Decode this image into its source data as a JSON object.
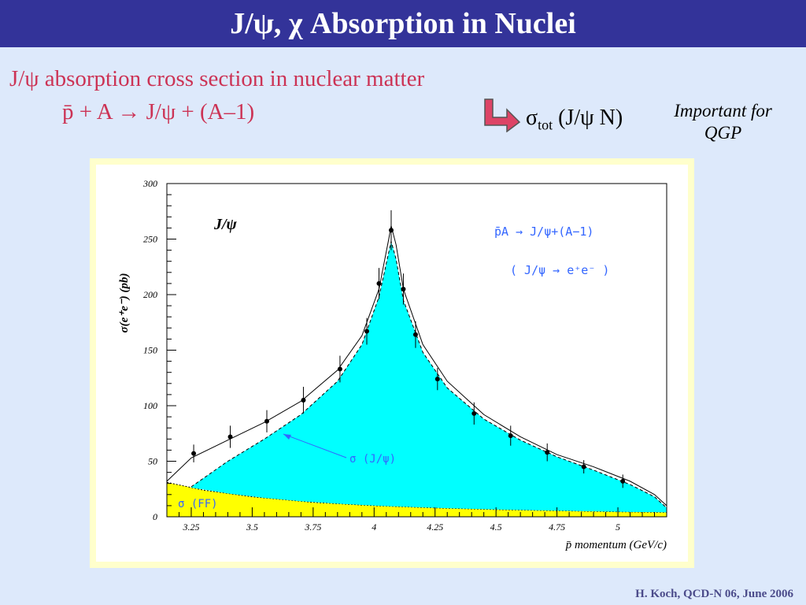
{
  "slide": {
    "title": "J/ψ, χ Absorption in Nuclei",
    "line1": "J/ψ  absorption cross section in nuclear matter",
    "line2": "p̄ + A → J/ψ + (A–1)",
    "sigma_symbol": "σ",
    "sigma_sub": "tot",
    "sigma_rest": " (J/ψ N)",
    "qgp_note_line1": "Important for",
    "qgp_note_line2": "QGP",
    "footer": "H. Koch, QCD-N 06, June 2006",
    "arrow_icon": "bent-arrow-icon",
    "colors": {
      "title_bg": "#333399",
      "accent_text": "#cc3355",
      "slide_bg": "#dde9fb",
      "frame": "#ffffcc",
      "arrow_fill": "#dd4466"
    }
  },
  "chart_data": {
    "type": "line",
    "xlabel": "p̄  momentum (GeV/c)",
    "ylabel": "σ(e⁺e⁻)  (pb)",
    "xlim": [
      3.15,
      5.2
    ],
    "ylim": [
      0,
      300
    ],
    "xticks": [
      3.25,
      3.5,
      3.75,
      4,
      4.25,
      4.5,
      4.75,
      5
    ],
    "xtick_labels": [
      "3.25",
      "3.5",
      "3.75",
      "4",
      "4.25",
      "4.5",
      "4.75",
      "5"
    ],
    "yticks": [
      0,
      50,
      100,
      150,
      200,
      250,
      300
    ],
    "ytick_labels": [
      "0",
      "50",
      "100",
      "150",
      "200",
      "250",
      "300"
    ],
    "grid": false,
    "annotations": {
      "particle": "J/ψ",
      "reaction": "p̄A → J/ψ+(A−1)",
      "decay": "( J/ψ → e⁺e⁻ )",
      "jpsi_label": "σ (J/ψ)",
      "ff_label": "σ (FF)"
    },
    "series": [
      {
        "kind": "data_points",
        "x": [
          3.26,
          3.41,
          3.56,
          3.71,
          3.86,
          3.97,
          4.02,
          4.07,
          4.12,
          4.17,
          4.26,
          4.41,
          4.56,
          4.71,
          4.86,
          5.02
        ],
        "y": [
          57,
          72,
          86,
          105,
          133,
          167,
          210,
          258,
          205,
          164,
          124,
          93,
          73,
          58,
          45,
          32
        ],
        "err": [
          8,
          10,
          10,
          12,
          12,
          12,
          14,
          18,
          14,
          12,
          10,
          10,
          9,
          8,
          6,
          6
        ]
      },
      {
        "kind": "total_curve",
        "x": [
          3.15,
          3.25,
          3.4,
          3.55,
          3.7,
          3.85,
          3.95,
          4.02,
          4.06,
          4.07,
          4.09,
          4.12,
          4.2,
          4.3,
          4.45,
          4.6,
          4.75,
          4.9,
          5.05,
          5.15,
          5.2
        ],
        "y": [
          32,
          53,
          69,
          85,
          104,
          132,
          163,
          205,
          250,
          262,
          245,
          205,
          155,
          122,
          92,
          72,
          56,
          45,
          32,
          20,
          10
        ]
      },
      {
        "kind": "jpsi_region",
        "x": [
          3.25,
          3.4,
          3.55,
          3.7,
          3.85,
          3.95,
          4.02,
          4.06,
          4.07,
          4.09,
          4.12,
          4.2,
          4.3,
          4.45,
          4.6,
          4.75,
          4.9,
          5.05,
          5.15,
          5.2
        ],
        "y": [
          27,
          50,
          70,
          92,
          122,
          155,
          198,
          238,
          248,
          232,
          195,
          148,
          116,
          88,
          69,
          54,
          42,
          29,
          18,
          8
        ]
      },
      {
        "kind": "ff_region",
        "x": [
          3.15,
          3.3,
          3.5,
          3.75,
          4.0,
          4.25,
          4.5,
          4.75,
          5.0,
          5.2
        ],
        "y": [
          31,
          24,
          18,
          13,
          10,
          8,
          6.5,
          5.5,
          4.5,
          4
        ]
      }
    ]
  }
}
